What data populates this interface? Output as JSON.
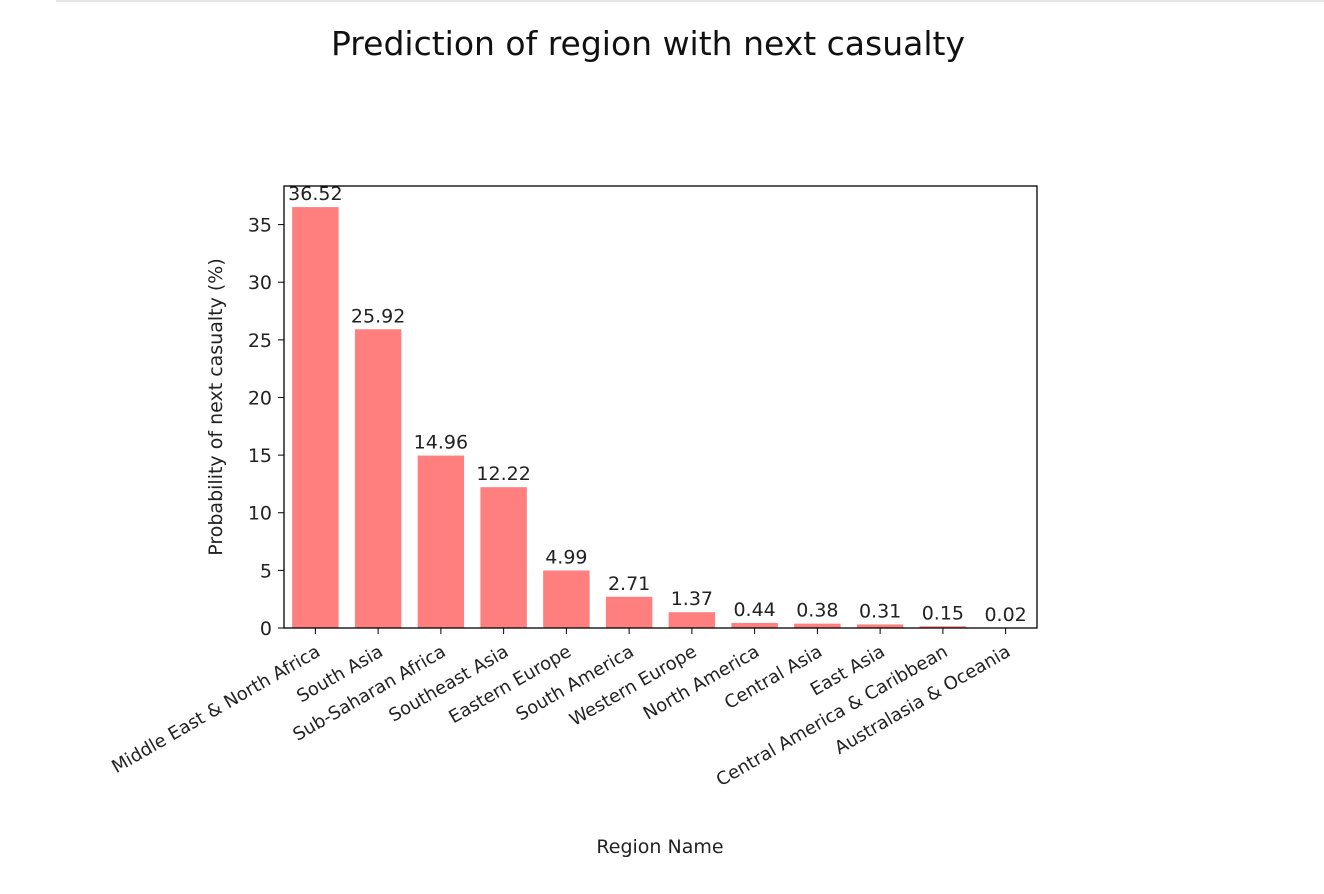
{
  "chart_data": {
    "type": "bar",
    "title": "Prediction of region with next casualty",
    "xlabel": "Region Name",
    "ylabel": "Probability of next casualty (%)",
    "ylim": [
      0,
      38.35
    ],
    "yticks": [
      0,
      5,
      10,
      15,
      20,
      25,
      30,
      35
    ],
    "grid": false,
    "bar_color": "#ff7f7f",
    "categories": [
      "Middle East & North Africa",
      "South Asia",
      "Sub-Saharan Africa",
      "Southeast Asia",
      "Eastern Europe",
      "South America",
      "Western Europe",
      "North America",
      "Central Asia",
      "East Asia",
      "Central America & Caribbean",
      "Australasia & Oceania"
    ],
    "values": [
      36.52,
      25.92,
      14.96,
      12.22,
      4.99,
      2.71,
      1.37,
      0.44,
      0.38,
      0.31,
      0.15,
      0.02
    ],
    "data_labels": [
      "36.52",
      "25.92",
      "14.96",
      "12.22",
      "4.99",
      "2.71",
      "1.37",
      "0.44",
      "0.38",
      "0.31",
      "0.15",
      "0.02"
    ]
  }
}
